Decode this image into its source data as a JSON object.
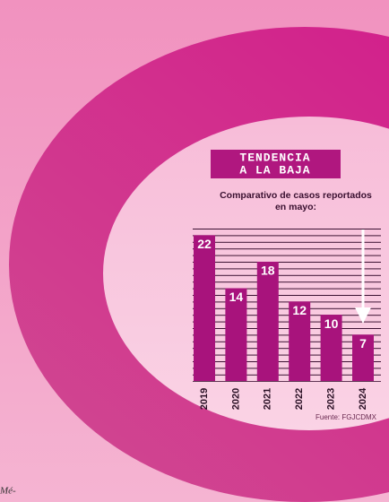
{
  "chart_data": {
    "type": "bar",
    "title": [
      "TENDENCIA",
      "A LA BAJA"
    ],
    "subtitle": [
      "Comparativo de casos reportados",
      "en mayo:"
    ],
    "categories": [
      "2019",
      "2020",
      "2021",
      "2022",
      "2023",
      "2024"
    ],
    "values": [
      22,
      14,
      18,
      12,
      10,
      7
    ],
    "color": "#a8137c",
    "ylim": [
      0,
      23
    ],
    "source": "Fuente: FGJCDMX"
  },
  "fragment": "Mé-"
}
